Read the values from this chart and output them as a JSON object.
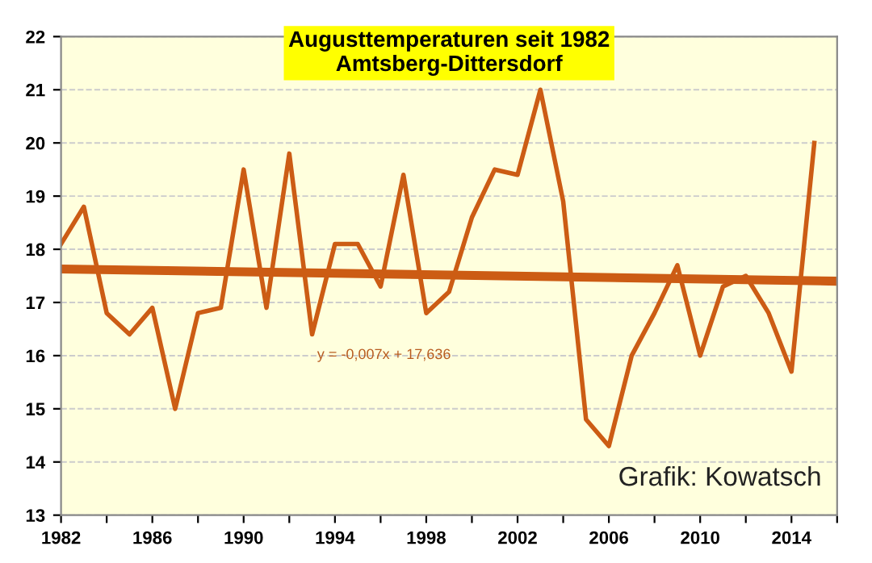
{
  "chart_data": {
    "type": "line",
    "title": "Augusttemperaturen seit 1982\nAmtsberg-Dittersdorf",
    "series": [
      {
        "color": "#cc5c14",
        "x": [
          1982,
          1983,
          1984,
          1985,
          1986,
          1987,
          1988,
          1989,
          1990,
          1991,
          1992,
          1993,
          1994,
          1995,
          1996,
          1997,
          1998,
          1999,
          2000,
          2001,
          2002,
          2003,
          2004,
          2005,
          2006,
          2007,
          2008,
          2009,
          2010,
          2011,
          2012,
          2013,
          2014,
          2015
        ],
        "values": [
          18.1,
          18.8,
          16.8,
          16.4,
          16.9,
          15.0,
          16.8,
          16.9,
          19.5,
          16.9,
          19.8,
          16.4,
          18.1,
          18.1,
          17.3,
          19.4,
          16.8,
          17.2,
          18.6,
          19.5,
          19.4,
          21.0,
          18.9,
          14.8,
          14.3,
          16.0,
          16.8,
          17.7,
          16.0,
          17.3,
          17.5,
          16.8,
          15.7,
          20.0
        ]
      },
      {
        "color": "#cc5c14",
        "x": [
          1982,
          2016
        ],
        "values": [
          17.63,
          17.4
        ]
      }
    ],
    "annotations": [
      "y = -0,007x + 17,636",
      "Grafik: Kowatsch"
    ],
    "xlim": [
      1982,
      2016
    ],
    "xticks": [
      1982,
      {
        "value": 1984,
        "label": null
      },
      1986,
      {
        "value": 1988,
        "label": null
      },
      1990,
      {
        "value": 1992,
        "label": null
      },
      1994,
      {
        "value": 1996,
        "label": null
      },
      1998,
      {
        "value": 2000,
        "label": null
      },
      2002,
      {
        "value": 2004,
        "label": null
      },
      2006,
      {
        "value": 2008,
        "label": null
      },
      2010,
      {
        "value": 2012,
        "label": null
      },
      2014,
      {
        "value": 2016,
        "label": null
      }
    ],
    "ylim": [
      13,
      22
    ],
    "yticks": [
      13,
      14,
      15,
      16,
      17,
      18,
      19,
      20,
      21,
      22
    ],
    "grid": "y",
    "legend": false,
    "marker": "none",
    "line_style": "solid"
  }
}
